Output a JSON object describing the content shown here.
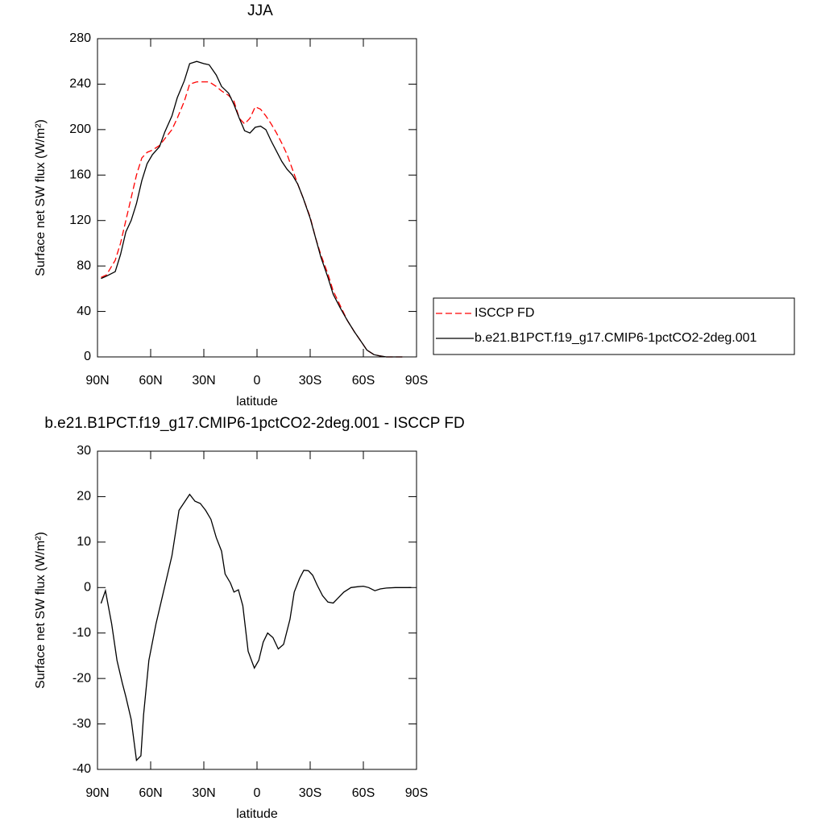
{
  "chart_data": [
    {
      "type": "line",
      "title": "JJA",
      "xlabel": "latitude",
      "ylabel": "Surface net SW flux (W/m²)",
      "x": [
        88,
        85,
        80,
        77,
        74,
        71,
        68,
        65,
        62,
        59,
        55,
        52,
        48,
        45,
        41,
        38,
        34,
        30,
        27,
        23,
        20,
        16,
        13,
        10,
        7,
        4,
        1,
        -2,
        -5,
        -8,
        -11,
        -14,
        -17,
        -20,
        -23,
        -26,
        -30,
        -33,
        -36,
        -40,
        -43,
        -47,
        -51,
        -55,
        -59,
        -62,
        -66,
        -69,
        -73,
        -78,
        -82
      ],
      "series": [
        {
          "name": "ISCCP FD",
          "color": "#ff0000",
          "dash": true,
          "values": [
            70,
            72,
            85,
            100,
            120,
            140,
            160,
            175,
            180,
            182,
            186,
            192,
            200,
            210,
            225,
            240,
            242,
            242,
            242,
            238,
            234,
            230,
            225,
            210,
            205,
            210,
            220,
            218,
            212,
            205,
            197,
            188,
            178,
            165,
            152,
            140,
            123,
            105,
            90,
            73,
            58,
            45,
            32,
            22,
            13,
            6,
            2,
            1,
            0,
            0,
            0
          ]
        },
        {
          "name": "b.e21.B1PCT.f19_g17.CMIP6-1pctCO2-2deg.001",
          "color": "#000000",
          "dash": false,
          "values": [
            69,
            71,
            75,
            90,
            110,
            120,
            135,
            155,
            170,
            178,
            185,
            198,
            212,
            228,
            243,
            258,
            260,
            258,
            257,
            248,
            238,
            232,
            222,
            210,
            199,
            197,
            202,
            203,
            200,
            190,
            181,
            172,
            165,
            160,
            152,
            140,
            122,
            105,
            88,
            70,
            55,
            43,
            32,
            22,
            13,
            6,
            2,
            1,
            0,
            0,
            0
          ]
        }
      ],
      "xlim": [
        90,
        -90
      ],
      "xticks": [
        {
          "value": 90,
          "label": "90N"
        },
        {
          "value": 60,
          "label": "60N"
        },
        {
          "value": 30,
          "label": "30N"
        },
        0,
        {
          "value": -30,
          "label": "30S"
        },
        {
          "value": -60,
          "label": "60S"
        },
        {
          "value": -90,
          "label": "90S"
        }
      ],
      "ylim": [
        0,
        280
      ],
      "yticks": [
        0,
        40,
        80,
        120,
        160,
        200,
        240,
        280
      ],
      "grid": false,
      "legend": "right"
    },
    {
      "type": "line",
      "title": "b.e21.B1PCT.f19_g17.CMIP6-1pctCO2-2deg.001 - ISCCP FD",
      "xlabel": "latitude",
      "ylabel": "Surface net SW flux (W/m²)",
      "x": [
        88,
        85.5,
        82,
        79,
        76,
        74,
        71,
        68,
        65.5,
        64,
        61,
        57,
        54,
        51,
        48,
        44,
        38,
        35,
        32,
        29,
        26,
        23,
        20,
        18,
        15,
        13,
        10.5,
        8,
        5,
        1.5,
        -1,
        -3.5,
        -6,
        -9,
        -12,
        -15,
        -18.6,
        -21,
        -24,
        -26.4,
        -29,
        -31.4,
        -34,
        -37,
        -40,
        -43,
        -46,
        -49,
        -53,
        -57,
        -60,
        -63,
        -66.5,
        -69.5,
        -73,
        -78,
        -87
      ],
      "values": [
        -3.5,
        -0.7,
        -8,
        -16,
        -21,
        -24,
        -29,
        -38,
        -37,
        -28,
        -16,
        -8,
        -3,
        2,
        7,
        17,
        20.5,
        19,
        18.5,
        17,
        15,
        11,
        8,
        3,
        1,
        -1,
        -0.5,
        -4,
        -14,
        -17.7,
        -16,
        -12,
        -10,
        -11,
        -13.5,
        -12.5,
        -7,
        -1,
        2,
        3.8,
        3.7,
        2.7,
        0.5,
        -1.8,
        -3.2,
        -3.4,
        -2.2,
        -1,
        0,
        0.2,
        0.3,
        0,
        -0.7,
        -0.3,
        -0.1,
        0,
        0
      ],
      "color": "#000000",
      "xlim": [
        90,
        -90
      ],
      "xticks": [
        {
          "value": 90,
          "label": "90N"
        },
        {
          "value": 60,
          "label": "60N"
        },
        {
          "value": 30,
          "label": "30N"
        },
        0,
        {
          "value": -30,
          "label": "30S"
        },
        {
          "value": -60,
          "label": "60S"
        },
        {
          "value": -90,
          "label": "90S"
        }
      ],
      "ylim": [
        -40,
        30
      ],
      "yticks": [
        -40,
        -30,
        -20,
        -10,
        0,
        10,
        20,
        30
      ],
      "grid": false
    }
  ]
}
